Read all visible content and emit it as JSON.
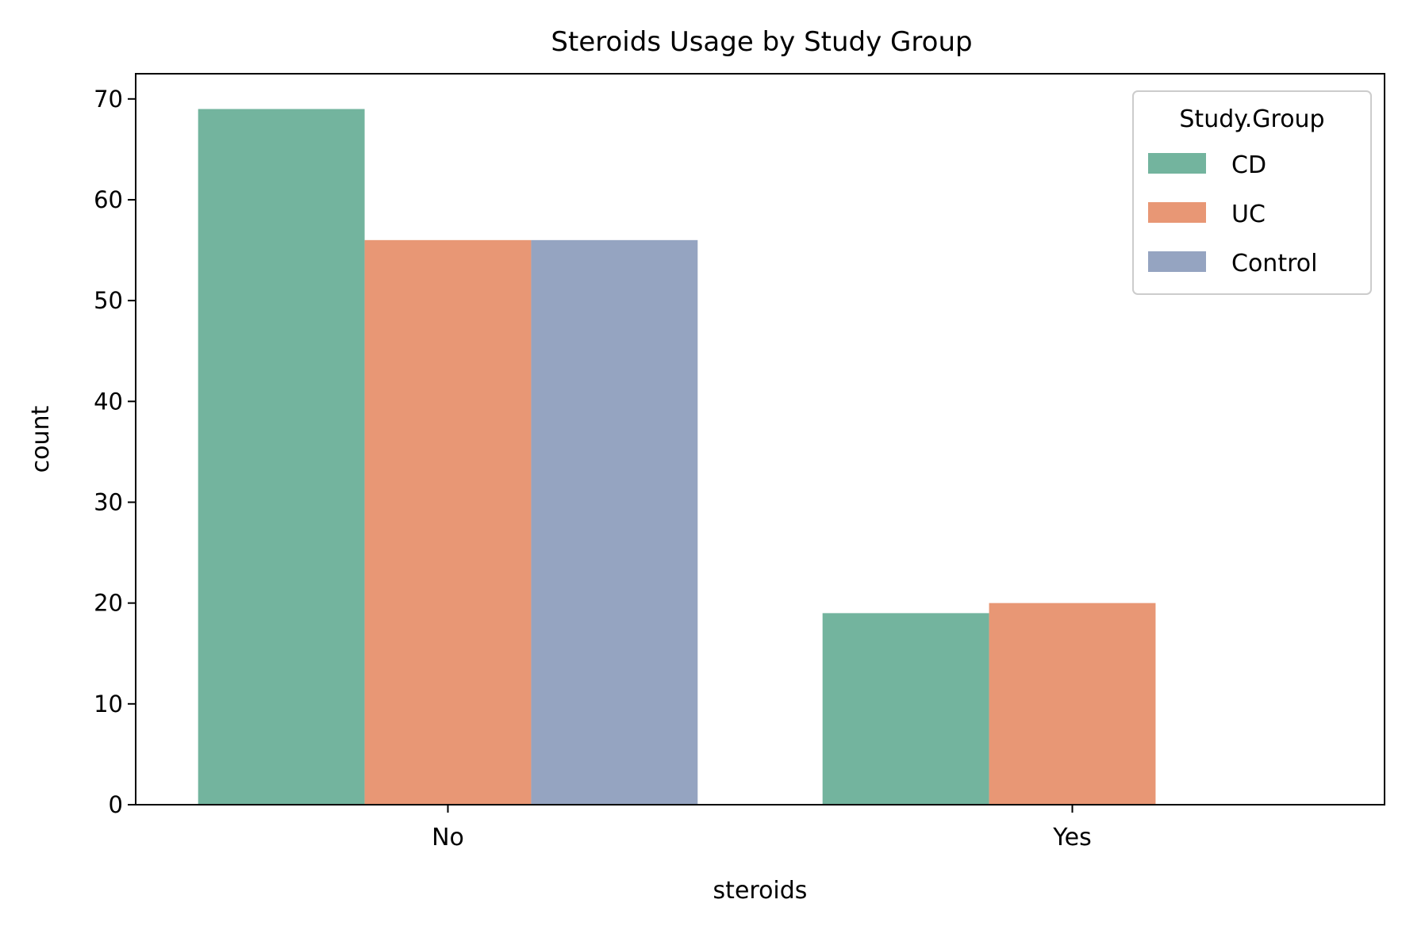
{
  "chart_data": {
    "type": "bar",
    "title": "Steroids Usage by Study Group",
    "xlabel": "steroids",
    "ylabel": "count",
    "categories": [
      "No",
      "Yes"
    ],
    "series": [
      {
        "name": "CD",
        "color": "#73b49e",
        "values": [
          69,
          19
        ]
      },
      {
        "name": "UC",
        "color": "#e89775",
        "values": [
          56,
          20
        ]
      },
      {
        "name": "Control",
        "color": "#95a4c1",
        "values": [
          56,
          0
        ]
      }
    ],
    "ylim": [
      0,
      72.5
    ],
    "yticks": [
      0,
      10,
      20,
      30,
      40,
      50,
      60,
      70
    ],
    "grid": false,
    "legend": {
      "title": "Study.Group",
      "position": "top-right"
    }
  }
}
